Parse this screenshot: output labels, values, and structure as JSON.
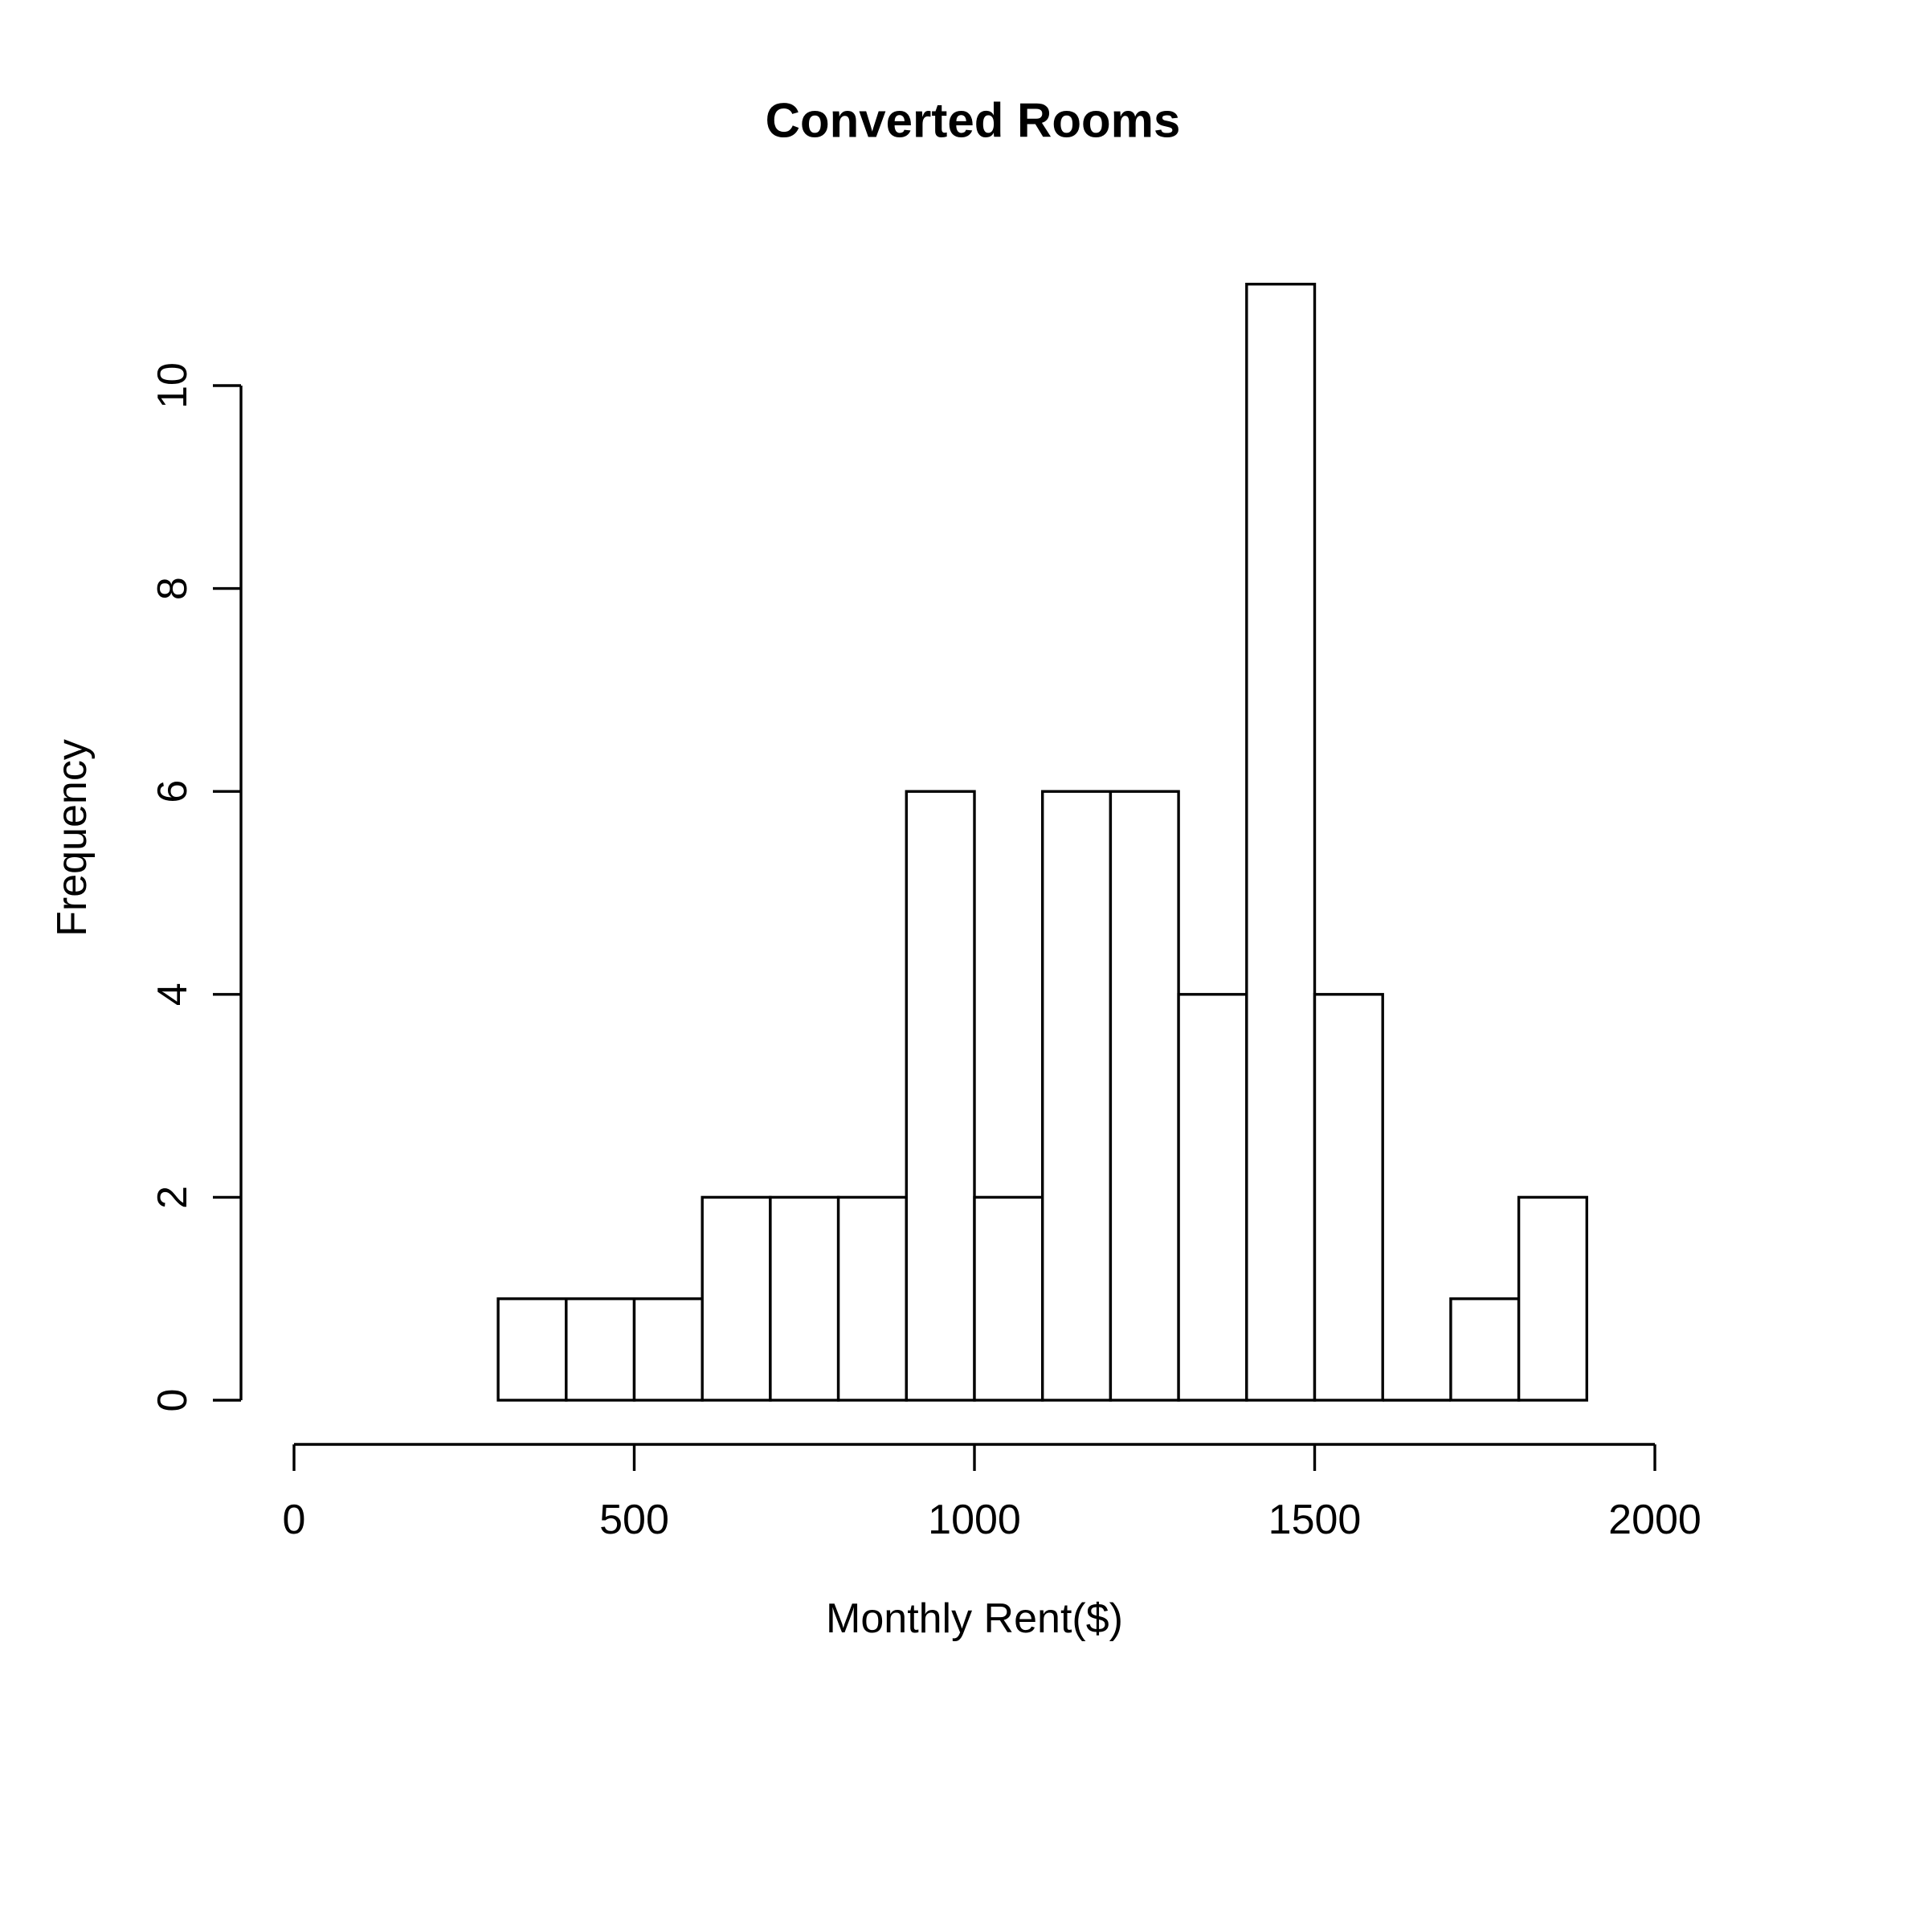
{
  "title": "Converted Rooms",
  "chart_data": {
    "type": "bar",
    "subtype": "histogram",
    "title": "Converted Rooms",
    "xlabel": "Monthly Rent($)",
    "ylabel": "Frequency",
    "bin_edges": [
      300,
      400,
      500,
      600,
      700,
      800,
      900,
      1000,
      1100,
      1200,
      1300,
      1400,
      1500,
      1600,
      1700,
      1800,
      1900
    ],
    "counts": [
      1,
      1,
      1,
      2,
      2,
      2,
      6,
      2,
      6,
      6,
      4,
      11,
      4,
      0,
      1,
      2
    ],
    "x_ticks": [
      0,
      500,
      1000,
      1500,
      2000
    ],
    "y_ticks": [
      0,
      2,
      4,
      6,
      8,
      10
    ],
    "xlim": [
      0,
      2000
    ],
    "ylim": [
      0,
      11
    ],
    "grid": false,
    "legend": "none",
    "bar_fill": "#ffffff",
    "bar_border": "#000000",
    "axis_color": "#000000",
    "background": "#ffffff"
  }
}
